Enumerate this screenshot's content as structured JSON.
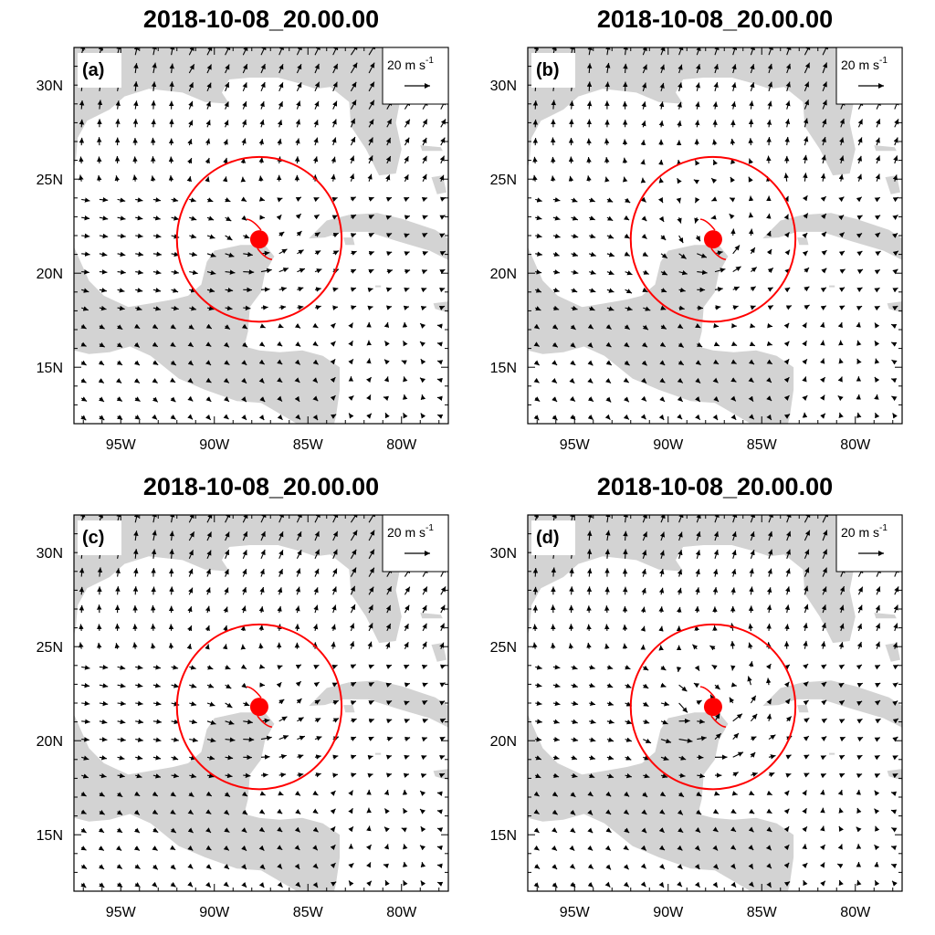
{
  "panels": [
    {
      "id": "a",
      "title": "2018-10-08_20.00.00",
      "label": "(a)",
      "pattern": "weak-cyclone-strong-easterlies"
    },
    {
      "id": "b",
      "title": "2018-10-08_20.00.00",
      "label": "(b)",
      "pattern": "strong-cyclone"
    },
    {
      "id": "c",
      "title": "2018-10-08_20.00.00",
      "label": "(c)",
      "pattern": "weak-cyclone-strong-easterlies"
    },
    {
      "id": "d",
      "title": "2018-10-08_20.00.00",
      "label": "(d)",
      "pattern": "irregular-eye"
    }
  ],
  "reference_vector": {
    "value": "20",
    "unit": "m s",
    "exponent": "-1"
  },
  "x_ticks": [
    {
      "label": "95W",
      "lon": -95
    },
    {
      "label": "90W",
      "lon": -90
    },
    {
      "label": "85W",
      "lon": -85
    },
    {
      "label": "80W",
      "lon": -80
    }
  ],
  "y_ticks": [
    {
      "label": "30N",
      "lat": 30
    },
    {
      "label": "25N",
      "lat": 25
    },
    {
      "label": "20N",
      "lat": 20
    },
    {
      "label": "15N",
      "lat": 15
    }
  ],
  "domain": {
    "lon_range": [
      -97.5,
      -77.5
    ],
    "lat_range": [
      12,
      32
    ]
  },
  "storm": {
    "center_lon": -87.6,
    "center_lat": 21.8,
    "circle_radius_deg": 4.4
  },
  "colors": {
    "storm": "#ff0000",
    "land": "#d3d3d3",
    "vectors": "#000000",
    "frame": "#000000"
  }
}
